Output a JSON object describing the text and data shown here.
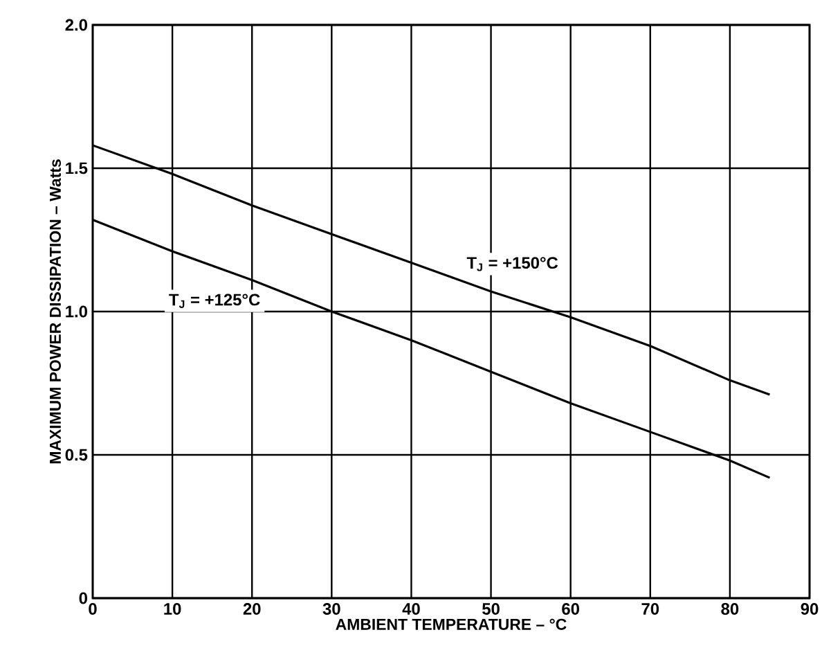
{
  "chart_data": {
    "type": "line",
    "xlabel": "AMBIENT TEMPERATURE – °C",
    "ylabel": "MAXIMUM POWER DISSIPATION – Watts",
    "x": [
      0,
      10,
      20,
      30,
      40,
      50,
      60,
      70,
      80,
      85
    ],
    "series": [
      {
        "name": "T$_{J}$ = +150°C",
        "color": "#000000",
        "values": [
          1.58,
          1.48,
          1.37,
          1.27,
          1.17,
          1.07,
          0.98,
          0.88,
          0.76,
          0.71
        ]
      },
      {
        "name": "T$_{J}$ = +125°C",
        "color": "#000000",
        "values": [
          1.32,
          1.21,
          1.11,
          1.0,
          0.9,
          0.79,
          0.68,
          0.58,
          0.48,
          0.42
        ]
      }
    ],
    "xlim": [
      0,
      90
    ],
    "ylim": [
      0,
      2.0
    ],
    "xticks": [
      0,
      10,
      20,
      30,
      40,
      50,
      60,
      70,
      80,
      90
    ],
    "yticks": [
      0,
      {
        "value": 0.5,
        "label": "0.5"
      },
      {
        "value": 1.0,
        "label": "1.0"
      },
      {
        "value": 1.5,
        "label": "1.5"
      },
      {
        "value": 2.0,
        "label": "2.0"
      }
    ],
    "grid": true,
    "legend": false,
    "marker": "none",
    "line_style": "solid"
  }
}
